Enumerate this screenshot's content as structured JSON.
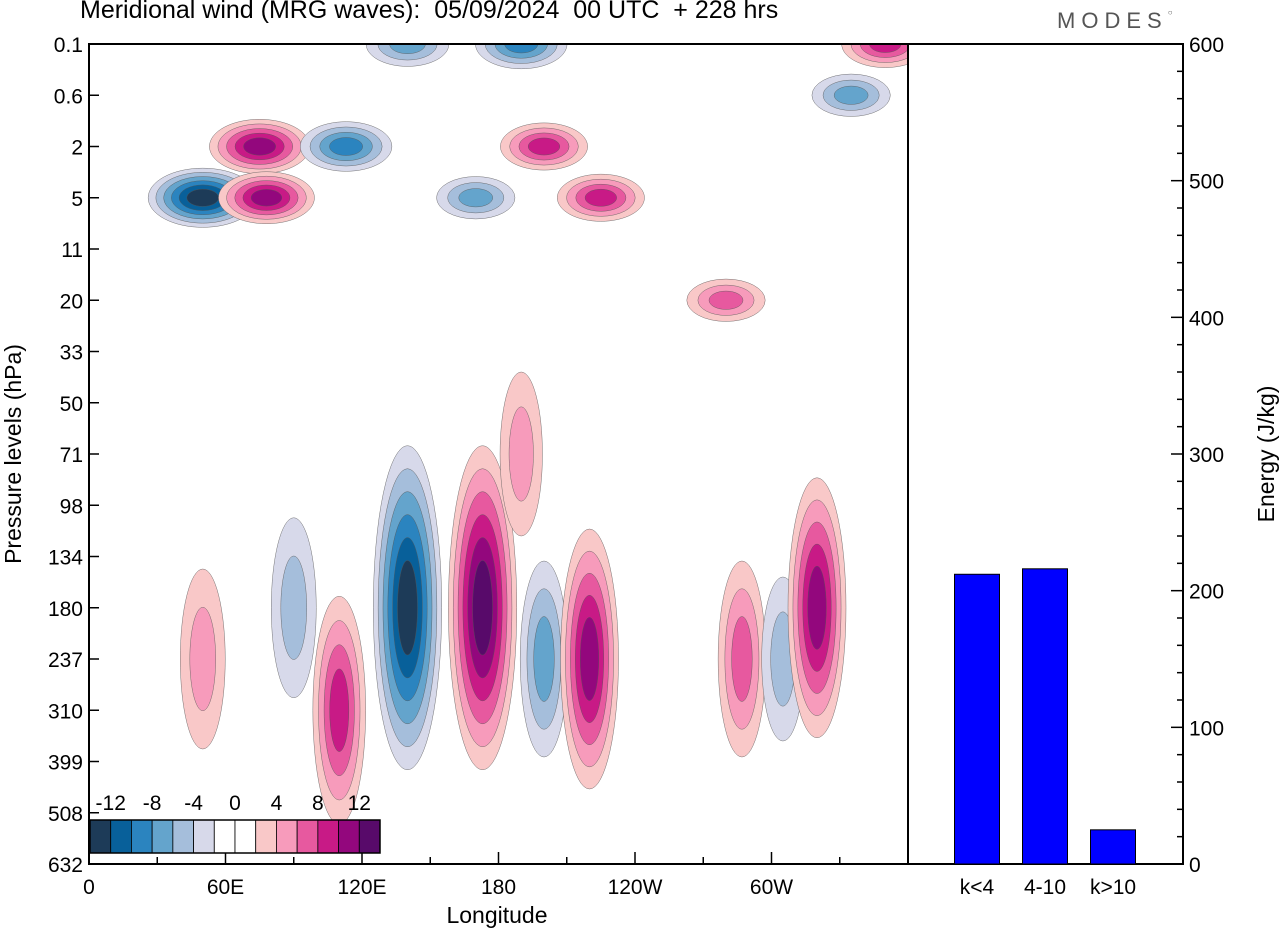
{
  "title": "Meridional wind (MRG waves):  05/09/2024  00 UTC  + 228 hrs",
  "logo": "MODES",
  "colors": {
    "negative": [
      "#1d3b58",
      "#08609a",
      "#2b84bf",
      "#64a4cc",
      "#a5bedb",
      "#d7d9ea"
    ],
    "zero": "#ffffff",
    "positive": [
      "#f9c8c8",
      "#f79bbb",
      "#e7599f",
      "#c81a86",
      "#93077d",
      "#580a6a"
    ],
    "bar": "#0000ff"
  },
  "chart_data": [
    {
      "type": "heatmap",
      "xlabel": "Longitude",
      "ylabel": "Pressure levels (hPa)",
      "x_ticks": [
        "0",
        "60E",
        "120E",
        "180",
        "120W",
        "60W"
      ],
      "y_ticks": [
        "0.1",
        "0.6",
        "2",
        "5",
        "11",
        "20",
        "33",
        "50",
        "71",
        "98",
        "134",
        "180",
        "237",
        "310",
        "399",
        "508",
        "632"
      ],
      "colorbar_labels": [
        "-12",
        "-8",
        "-4",
        "0",
        "4",
        "8",
        "12"
      ],
      "features": [
        {
          "lon": 50,
          "level": 5,
          "value": -13
        },
        {
          "lon": 75,
          "level": 2,
          "value": 11
        },
        {
          "lon": 78,
          "level": 5,
          "value": 10
        },
        {
          "lon": 113,
          "level": 2,
          "value": -9
        },
        {
          "lon": 140,
          "level": 0.1,
          "value": -7
        },
        {
          "lon": 190,
          "level": 0.1,
          "value": -9
        },
        {
          "lon": 200,
          "level": 2,
          "value": 8
        },
        {
          "lon": 225,
          "level": 5,
          "value": 8
        },
        {
          "lon": 170,
          "level": 5,
          "value": -6
        },
        {
          "lon": 335,
          "level": 0.6,
          "value": -6
        },
        {
          "lon": 350,
          "level": 0.1,
          "value": 8
        },
        {
          "lon": 280,
          "level": 20,
          "value": 6
        },
        {
          "lon": 140,
          "level": 180,
          "value": -14
        },
        {
          "lon": 90,
          "level": 180,
          "value": -5
        },
        {
          "lon": 173,
          "level": 180,
          "value": 14
        },
        {
          "lon": 200,
          "level": 237,
          "value": -6
        },
        {
          "lon": 220,
          "level": 237,
          "value": 10
        },
        {
          "lon": 287,
          "level": 237,
          "value": 6
        },
        {
          "lon": 305,
          "level": 237,
          "value": -4
        },
        {
          "lon": 320,
          "level": 180,
          "value": 10
        },
        {
          "lon": 110,
          "level": 310,
          "value": 8
        },
        {
          "lon": 50,
          "level": 237,
          "value": 5
        },
        {
          "lon": 190,
          "level": 71,
          "value": 4
        }
      ]
    },
    {
      "type": "bar",
      "ylabel": "Energy (J/kg)",
      "ylim": [
        0,
        600
      ],
      "y_ticks": [
        "0",
        "100",
        "200",
        "300",
        "400",
        "500",
        "600"
      ],
      "categories": [
        "k<4",
        "4-10",
        "k>10"
      ],
      "values": [
        212,
        216,
        25
      ]
    }
  ]
}
